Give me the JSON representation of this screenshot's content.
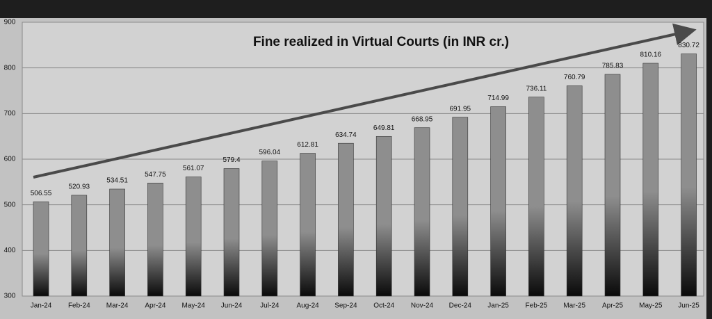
{
  "chart_data": {
    "type": "bar",
    "title": "Fine realized in Virtual Courts (in INR cr.)",
    "categories": [
      "Jan-24",
      "Feb-24",
      "Mar-24",
      "Apr-24",
      "May-24",
      "Jun-24",
      "Jul-24",
      "Aug-24",
      "Sep-24",
      "Oct-24",
      "Nov-24",
      "Dec-24",
      "Jan-25",
      "Feb-25",
      "Mar-25",
      "Apr-25",
      "May-25",
      "Jun-25"
    ],
    "values": [
      506.55,
      520.93,
      534.51,
      547.75,
      561.07,
      579.4,
      596.04,
      612.81,
      634.74,
      649.81,
      668.95,
      691.95,
      714.99,
      736.11,
      760.79,
      785.83,
      810.16,
      830.72
    ],
    "color": "#8e8e8e",
    "ylim": [
      300,
      900
    ],
    "yticks": [
      300,
      400,
      500,
      600,
      700,
      800,
      900
    ],
    "grid": true
  }
}
